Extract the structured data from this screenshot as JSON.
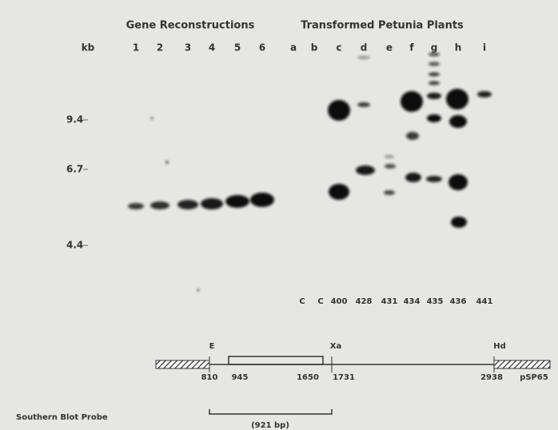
{
  "header": {
    "left": "Gene Reconstructions",
    "right": "Transformed Petunia Plants"
  },
  "kb_label": "kb",
  "lanes": [
    "1",
    "2",
    "3",
    "4",
    "5",
    "6",
    "a",
    "b",
    "c",
    "d",
    "e",
    "f",
    "g",
    "h",
    "i"
  ],
  "size_markers": [
    9.4,
    6.7,
    4.4
  ],
  "plant_ids": [
    "C",
    "C",
    "400",
    "428",
    "431",
    "434",
    "435",
    "436",
    "441"
  ],
  "map": {
    "sites": [
      "E",
      "Xa",
      "Hd"
    ],
    "positions": [
      "810",
      "945",
      "1650",
      "1731",
      "2938"
    ],
    "vector": "pSP65"
  },
  "probe": {
    "label": "Southern Blot Probe",
    "size": "(921 bp)"
  }
}
